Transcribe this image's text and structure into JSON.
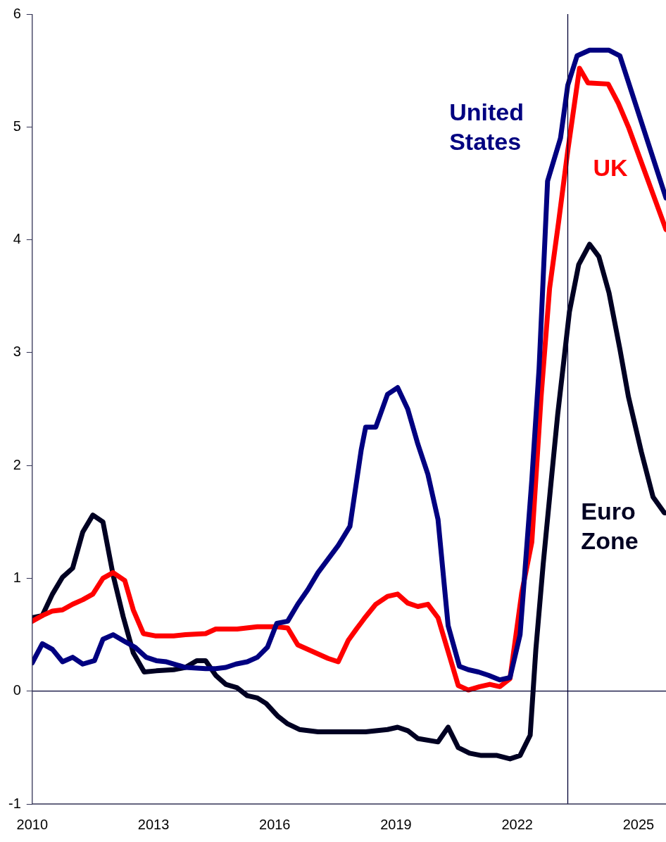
{
  "chart_data": {
    "type": "line",
    "xlim": [
      2010,
      2025.68
    ],
    "xticks": [
      2010,
      2013,
      2016,
      2019,
      2022,
      2025
    ],
    "ylim": [
      -1,
      6
    ],
    "yticks": [
      -1,
      0,
      1,
      2,
      3,
      4,
      5,
      6
    ],
    "grid": false,
    "legend": false,
    "marker": "none",
    "line_style": "solid",
    "ref_lines": [
      {
        "axis": "y",
        "value": 0,
        "color": "#000033"
      },
      {
        "axis": "x",
        "value": 2023.25,
        "color": "#000033"
      }
    ],
    "series": [
      {
        "name": "United States",
        "color": "#000080",
        "x": [
          2010,
          2010.25,
          2010.5,
          2010.75,
          2011,
          2011.25,
          2011.54,
          2011.75,
          2012,
          2012.29,
          2012.54,
          2012.82,
          2013.07,
          2013.32,
          2013.79,
          2014.29,
          2014.54,
          2014.79,
          2015.04,
          2015.32,
          2015.57,
          2015.82,
          2016.05,
          2016.32,
          2016.57,
          2016.82,
          2017.07,
          2017.32,
          2017.57,
          2017.86,
          2018.14,
          2018.25,
          2018.5,
          2018.79,
          2019.04,
          2019.29,
          2019.54,
          2019.79,
          2020.04,
          2020.29,
          2020.57,
          2020.79,
          2021.04,
          2021.29,
          2021.57,
          2021.82,
          2022.07,
          2022.36,
          2022.54,
          2022.75,
          2023.07,
          2023.25,
          2023.48,
          2023.79,
          2024.27,
          2024.54,
          2025.68
        ],
        "values": [
          0.25,
          0.42,
          0.37,
          0.26,
          0.3,
          0.24,
          0.27,
          0.46,
          0.5,
          0.44,
          0.39,
          0.3,
          0.27,
          0.26,
          0.21,
          0.2,
          0.2,
          0.21,
          0.24,
          0.26,
          0.3,
          0.39,
          0.6,
          0.62,
          0.77,
          0.9,
          1.05,
          1.17,
          1.29,
          1.46,
          2.14,
          2.34,
          2.34,
          2.63,
          2.69,
          2.5,
          2.19,
          1.92,
          1.52,
          0.58,
          0.22,
          0.19,
          0.17,
          0.14,
          0.1,
          0.12,
          0.5,
          1.87,
          2.86,
          4.52,
          4.9,
          5.37,
          5.63,
          5.68,
          5.68,
          5.63,
          4.37
        ]
      },
      {
        "name": "UK",
        "color": "#ff0000",
        "x": [
          2010,
          2010.25,
          2010.5,
          2010.75,
          2011,
          2011.25,
          2011.5,
          2011.75,
          2012,
          2012.29,
          2012.5,
          2012.75,
          2013.04,
          2013.5,
          2013.79,
          2014.29,
          2014.54,
          2015.07,
          2015.57,
          2016.04,
          2016.32,
          2016.57,
          2017.32,
          2017.57,
          2017.82,
          2018,
          2018.25,
          2018.5,
          2018.79,
          2019.04,
          2019.29,
          2019.54,
          2019.79,
          2020.04,
          2020.29,
          2020.54,
          2020.79,
          2021.07,
          2021.32,
          2021.57,
          2021.82,
          2022.11,
          2022.36,
          2022.59,
          2022.8,
          2023.02,
          2023.25,
          2023.54,
          2023.75,
          2024.25,
          2024.5,
          2024.75,
          2025.68
        ],
        "values": [
          0.62,
          0.67,
          0.71,
          0.72,
          0.77,
          0.81,
          0.86,
          1.0,
          1.05,
          0.98,
          0.72,
          0.51,
          0.49,
          0.49,
          0.5,
          0.51,
          0.55,
          0.55,
          0.57,
          0.57,
          0.56,
          0.41,
          0.29,
          0.26,
          0.45,
          0.54,
          0.66,
          0.77,
          0.84,
          0.86,
          0.78,
          0.75,
          0.77,
          0.65,
          0.35,
          0.05,
          0.01,
          0.04,
          0.06,
          0.04,
          0.11,
          0.87,
          1.32,
          2.61,
          3.57,
          4.15,
          4.79,
          5.52,
          5.39,
          5.38,
          5.21,
          5.0,
          4.09
        ]
      },
      {
        "name": "Euro Zone",
        "color": "#000022",
        "x": [
          2010,
          2010.25,
          2010.5,
          2010.75,
          2011,
          2011.25,
          2011.5,
          2011.75,
          2012,
          2012.25,
          2012.5,
          2012.77,
          2013.07,
          2013.5,
          2013.79,
          2014.07,
          2014.29,
          2014.54,
          2014.79,
          2015.07,
          2015.32,
          2015.57,
          2015.79,
          2016.07,
          2016.32,
          2016.61,
          2017.07,
          2018.25,
          2018.79,
          2019.04,
          2019.29,
          2019.54,
          2020.04,
          2020.29,
          2020.54,
          2020.82,
          2021.11,
          2021.5,
          2021.82,
          2022.07,
          2022.32,
          2022.46,
          2022.64,
          2022.82,
          2023,
          2023.29,
          2023.52,
          2023.79,
          2024.02,
          2024.27,
          2024.54,
          2024.75,
          2025.07,
          2025.36,
          2025.64,
          2025.68
        ],
        "values": [
          0.65,
          0.67,
          0.86,
          1.01,
          1.09,
          1.41,
          1.56,
          1.5,
          1.03,
          0.66,
          0.34,
          0.17,
          0.18,
          0.19,
          0.21,
          0.27,
          0.27,
          0.14,
          0.06,
          0.03,
          -0.04,
          -0.06,
          -0.11,
          -0.22,
          -0.29,
          -0.34,
          -0.36,
          -0.36,
          -0.34,
          -0.32,
          -0.35,
          -0.42,
          -0.45,
          -0.32,
          -0.5,
          -0.55,
          -0.57,
          -0.57,
          -0.6,
          -0.57,
          -0.39,
          0.37,
          1.12,
          1.79,
          2.45,
          3.36,
          3.78,
          3.96,
          3.85,
          3.53,
          3.03,
          2.61,
          2.12,
          1.72,
          1.58,
          1.58
        ]
      }
    ]
  }
}
